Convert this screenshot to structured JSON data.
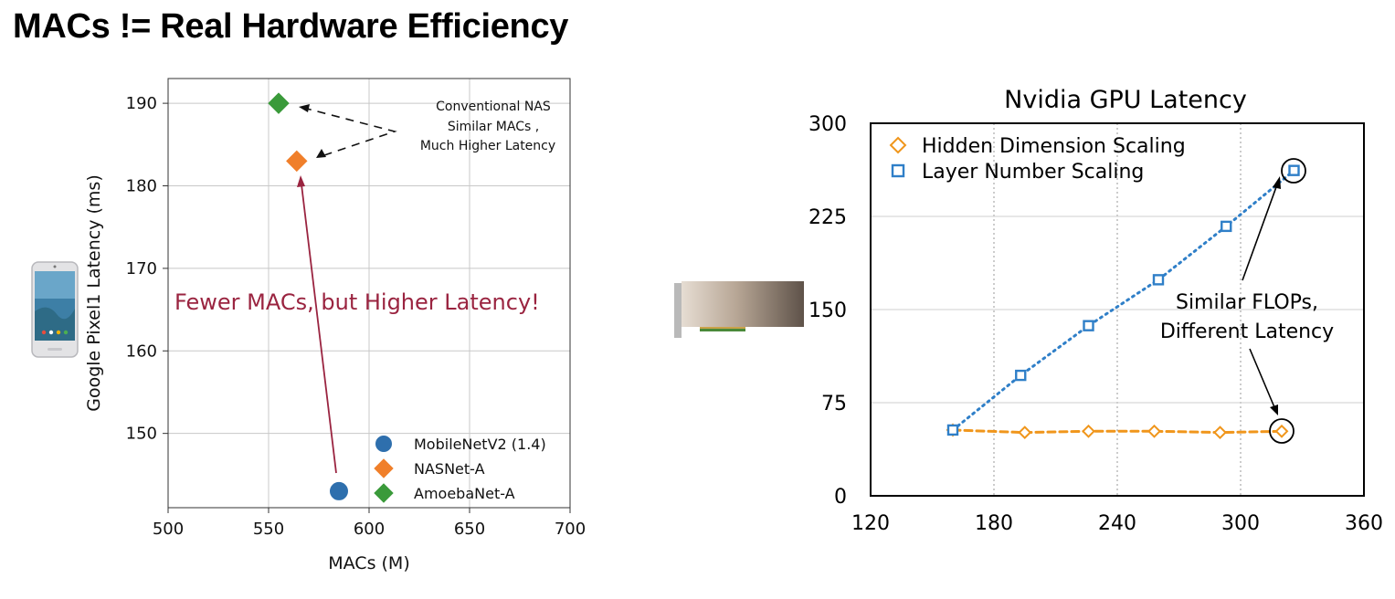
{
  "slide": {
    "title": "MACs != Real Hardware Efficiency"
  },
  "chart_data": [
    {
      "type": "scatter",
      "title": "",
      "xlabel": "MACs (M)",
      "ylabel": "Google Pixel1 Latency (ms)",
      "xlim": [
        500,
        700
      ],
      "ylim": [
        141,
        193
      ],
      "xticks": [
        "500",
        "550",
        "600",
        "650",
        "700"
      ],
      "yticks": [
        "150",
        "160",
        "170",
        "180",
        "190"
      ],
      "grid": true,
      "legend_position": "bottom-right",
      "series": [
        {
          "name": "MobileNetV2 (1.4)",
          "marker": "circle",
          "color": "#2e6fad",
          "points": [
            [
              585,
              143
            ]
          ]
        },
        {
          "name": "NASNet-A",
          "marker": "diamond",
          "color": "#f07f2a",
          "points": [
            [
              564,
              183
            ]
          ]
        },
        {
          "name": "AmoebaNet-A",
          "marker": "diamond",
          "color": "#3a9a3a",
          "points": [
            [
              555,
              190
            ]
          ]
        }
      ],
      "annotations": [
        {
          "text": "Conventional NAS",
          "color": "#000000"
        },
        {
          "text": "Similar MACs ,",
          "color": "#000000"
        },
        {
          "text": "Much Higher Latency",
          "color": "#000000"
        },
        {
          "text": "Fewer MACs, but Higher Latency!",
          "color": "#9a2440"
        }
      ]
    },
    {
      "type": "line",
      "title": "Nvidia GPU Latency",
      "xlabel": "",
      "ylabel": "",
      "xlim": [
        120,
        360
      ],
      "ylim": [
        0,
        300
      ],
      "xticks": [
        "120",
        "180",
        "240",
        "300",
        "360"
      ],
      "yticks": [
        "0",
        "75",
        "150",
        "225",
        "300"
      ],
      "grid": true,
      "legend_position": "top-left",
      "series": [
        {
          "name": "Hidden Dimension Scaling",
          "marker": "diamond",
          "style": "dashed",
          "color": "#f0961c",
          "x": [
            160,
            195,
            226,
            258,
            290,
            320
          ],
          "y": [
            53,
            51,
            52,
            52,
            51,
            52
          ]
        },
        {
          "name": "Layer Number Scaling",
          "marker": "square",
          "style": "dotted",
          "color": "#2f7fc8",
          "x": [
            160,
            193,
            226,
            260,
            293,
            326
          ],
          "y": [
            53,
            97,
            137,
            174,
            217,
            262
          ]
        }
      ],
      "annotations": [
        {
          "text": "Similar FLOPs,",
          "color": "#000000"
        },
        {
          "text": "Different Latency",
          "color": "#000000"
        }
      ]
    }
  ]
}
